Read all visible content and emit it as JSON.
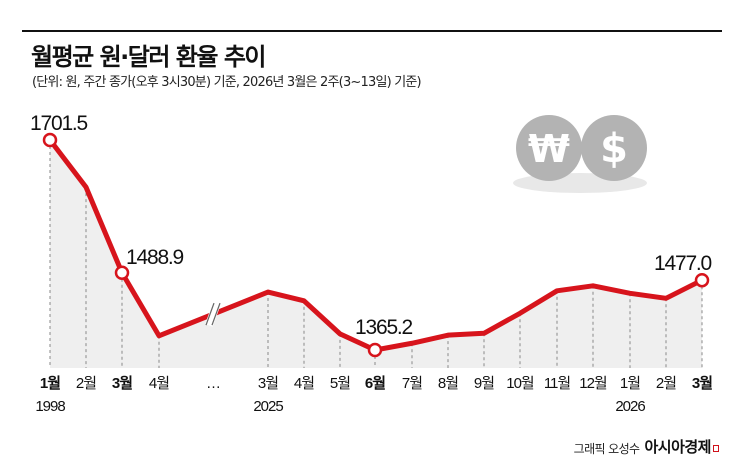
{
  "header": {
    "title": "월평균 원·달러 환율 추이",
    "subtitle": "(단위: 원, 주간 종가(오후 3시30분) 기준, 2026년 3월은 2주(3~13일) 기준)"
  },
  "icons": {
    "won": "₩",
    "dollar": "$"
  },
  "footer": {
    "credit": "그래픽 오성수",
    "brand": "아시아경제"
  },
  "colors": {
    "line": "#d7141c",
    "fill": "#efefef",
    "coin": "#b3b3b3",
    "coin_shadow": "#e8e8e8"
  },
  "chart_data": {
    "type": "line",
    "title": "월평균 원·달러 환율 추이",
    "subtitle": "(단위: 원, 주간 종가(오후 3시30분) 기준, 2026년 3월은 2주(3~13일) 기준)",
    "xlabel": "",
    "ylabel": "원",
    "axis_break_after": "1998-4월",
    "categories": [
      "1998-1월",
      "1998-2월",
      "1998-3월",
      "1998-4월",
      "2025-3월",
      "2025-4월",
      "2025-5월",
      "2025-6월",
      "2025-7월",
      "2025-8월",
      "2025-9월",
      "2025-10월",
      "2025-11월",
      "2025-12월",
      "2026-1월",
      "2026-2월",
      "2026-3월"
    ],
    "tick_labels": [
      "1월",
      "2월",
      "3월",
      "4월",
      "…",
      "3월",
      "4월",
      "5월",
      "6월",
      "7월",
      "8월",
      "9월",
      "10월",
      "11월",
      "12월",
      "1월",
      "2월",
      "3월"
    ],
    "year_labels": [
      {
        "at": "1월",
        "year": "1998"
      },
      {
        "at": "3월",
        "year": "2025"
      },
      {
        "at": "1월",
        "year": "2026"
      }
    ],
    "series": [
      {
        "name": "원·달러 환율",
        "values": [
          1701.5,
          1626,
          1488.9,
          1388,
          1458,
          1444,
          1391,
          1365.2,
          1376,
          1389,
          1392,
          1424,
          1460,
          1468,
          1456,
          1448,
          1477.0
        ]
      }
    ],
    "annotations": [
      {
        "category": "1998-1월",
        "label": "1701.5"
      },
      {
        "category": "1998-3월",
        "label": "1488.9"
      },
      {
        "category": "2025-6월",
        "label": "1365.2"
      },
      {
        "category": "2026-3월",
        "label": "1477.0"
      }
    ],
    "grid": false,
    "legend": null
  }
}
